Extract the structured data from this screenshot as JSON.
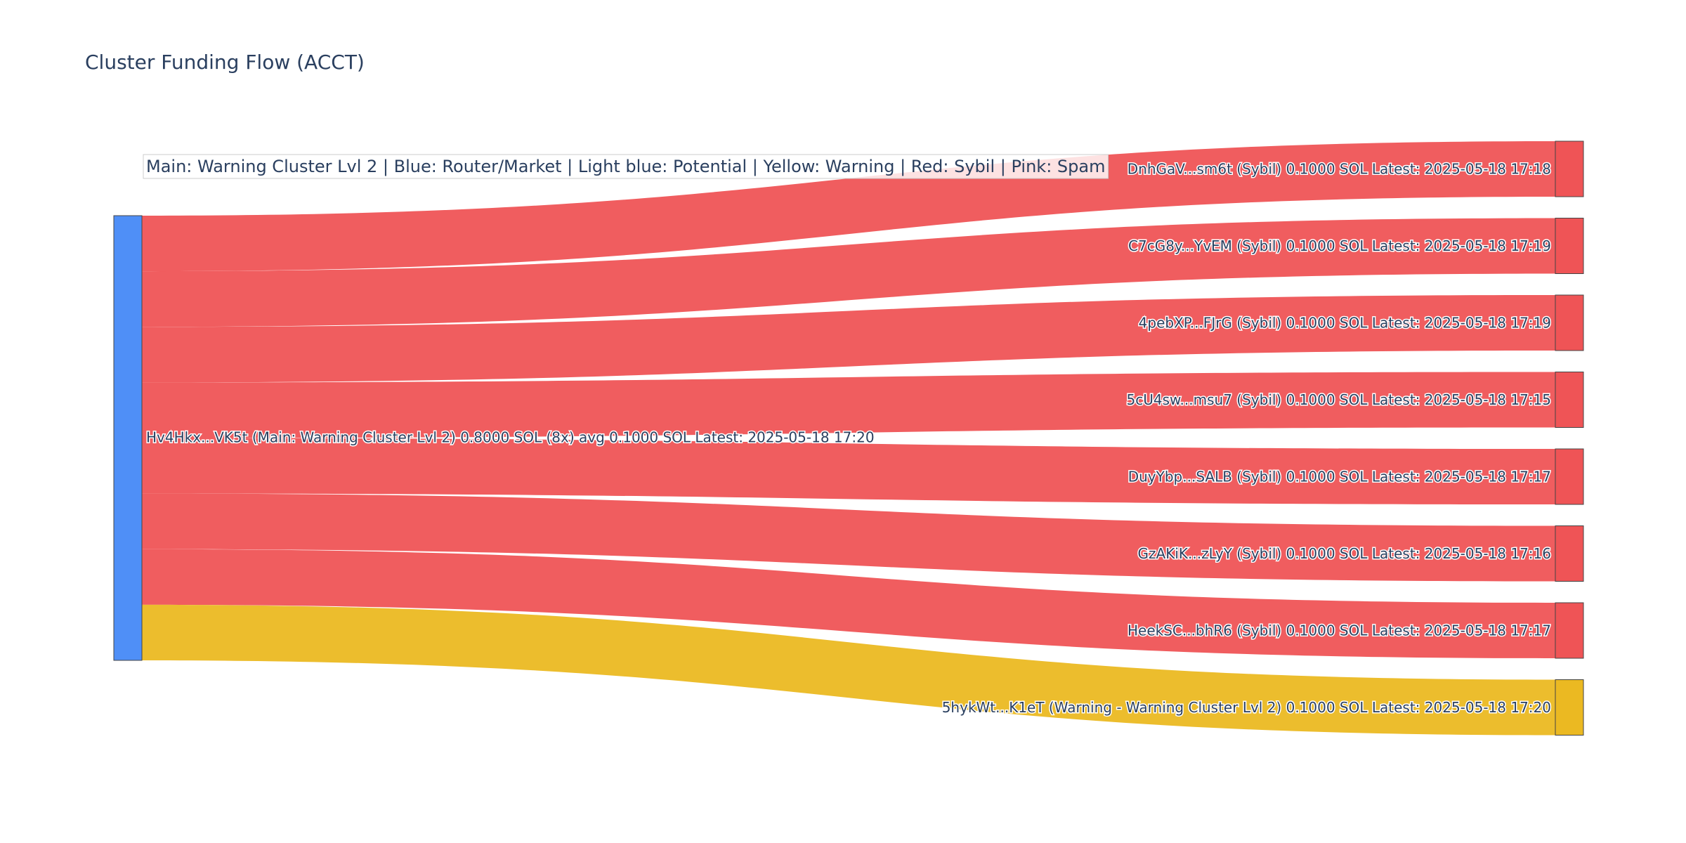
{
  "chart_data": {
    "type": "sankey",
    "title": "Cluster Funding Flow (ACCT)",
    "annotation": "Main: Warning Cluster Lvl 2  |  Blue: Router/Market | Light blue: Potential | Yellow: Warning | Red: Sybil | Pink: Spam",
    "unit": "SOL",
    "colors": {
      "router_market": "#4f8ff7",
      "sybil": "#ef5456",
      "warning": "#ebb922",
      "potential": "#a8d0f5",
      "spam": "#f5b3c8"
    },
    "source": {
      "label": "Hv4Hkx...VK5t (Main: Warning Cluster Lvl 2) 0.8000 SOL (8x) avg 0.1000 SOL Latest: 2025-05-18 17:20",
      "category": "router_market",
      "total": 0.8
    },
    "targets": [
      {
        "label": "DnhGaV...sm6t (Sybil) 0.1000 SOL Latest: 2025-05-18 17:18",
        "category": "sybil",
        "value": 0.1
      },
      {
        "label": "C7cG8y...YvEM (Sybil) 0.1000 SOL Latest: 2025-05-18 17:19",
        "category": "sybil",
        "value": 0.1
      },
      {
        "label": "4pebXP...FJrG (Sybil) 0.1000 SOL Latest: 2025-05-18 17:19",
        "category": "sybil",
        "value": 0.1
      },
      {
        "label": "5cU4sw...msu7 (Sybil) 0.1000 SOL Latest: 2025-05-18 17:15",
        "category": "sybil",
        "value": 0.1
      },
      {
        "label": "DuyYbp...SALB (Sybil) 0.1000 SOL Latest: 2025-05-18 17:17",
        "category": "sybil",
        "value": 0.1
      },
      {
        "label": "GzAKiK...zLyY (Sybil) 0.1000 SOL Latest: 2025-05-18 17:16",
        "category": "sybil",
        "value": 0.1
      },
      {
        "label": "HeekSC...bhR6 (Sybil) 0.1000 SOL Latest: 2025-05-18 17:17",
        "category": "sybil",
        "value": 0.1
      },
      {
        "label": "5hykWt...K1eT (Warning - Warning Cluster Lvl 2) 0.1000 SOL Latest: 2025-05-18 17:20",
        "category": "warning",
        "value": 0.1
      }
    ]
  }
}
